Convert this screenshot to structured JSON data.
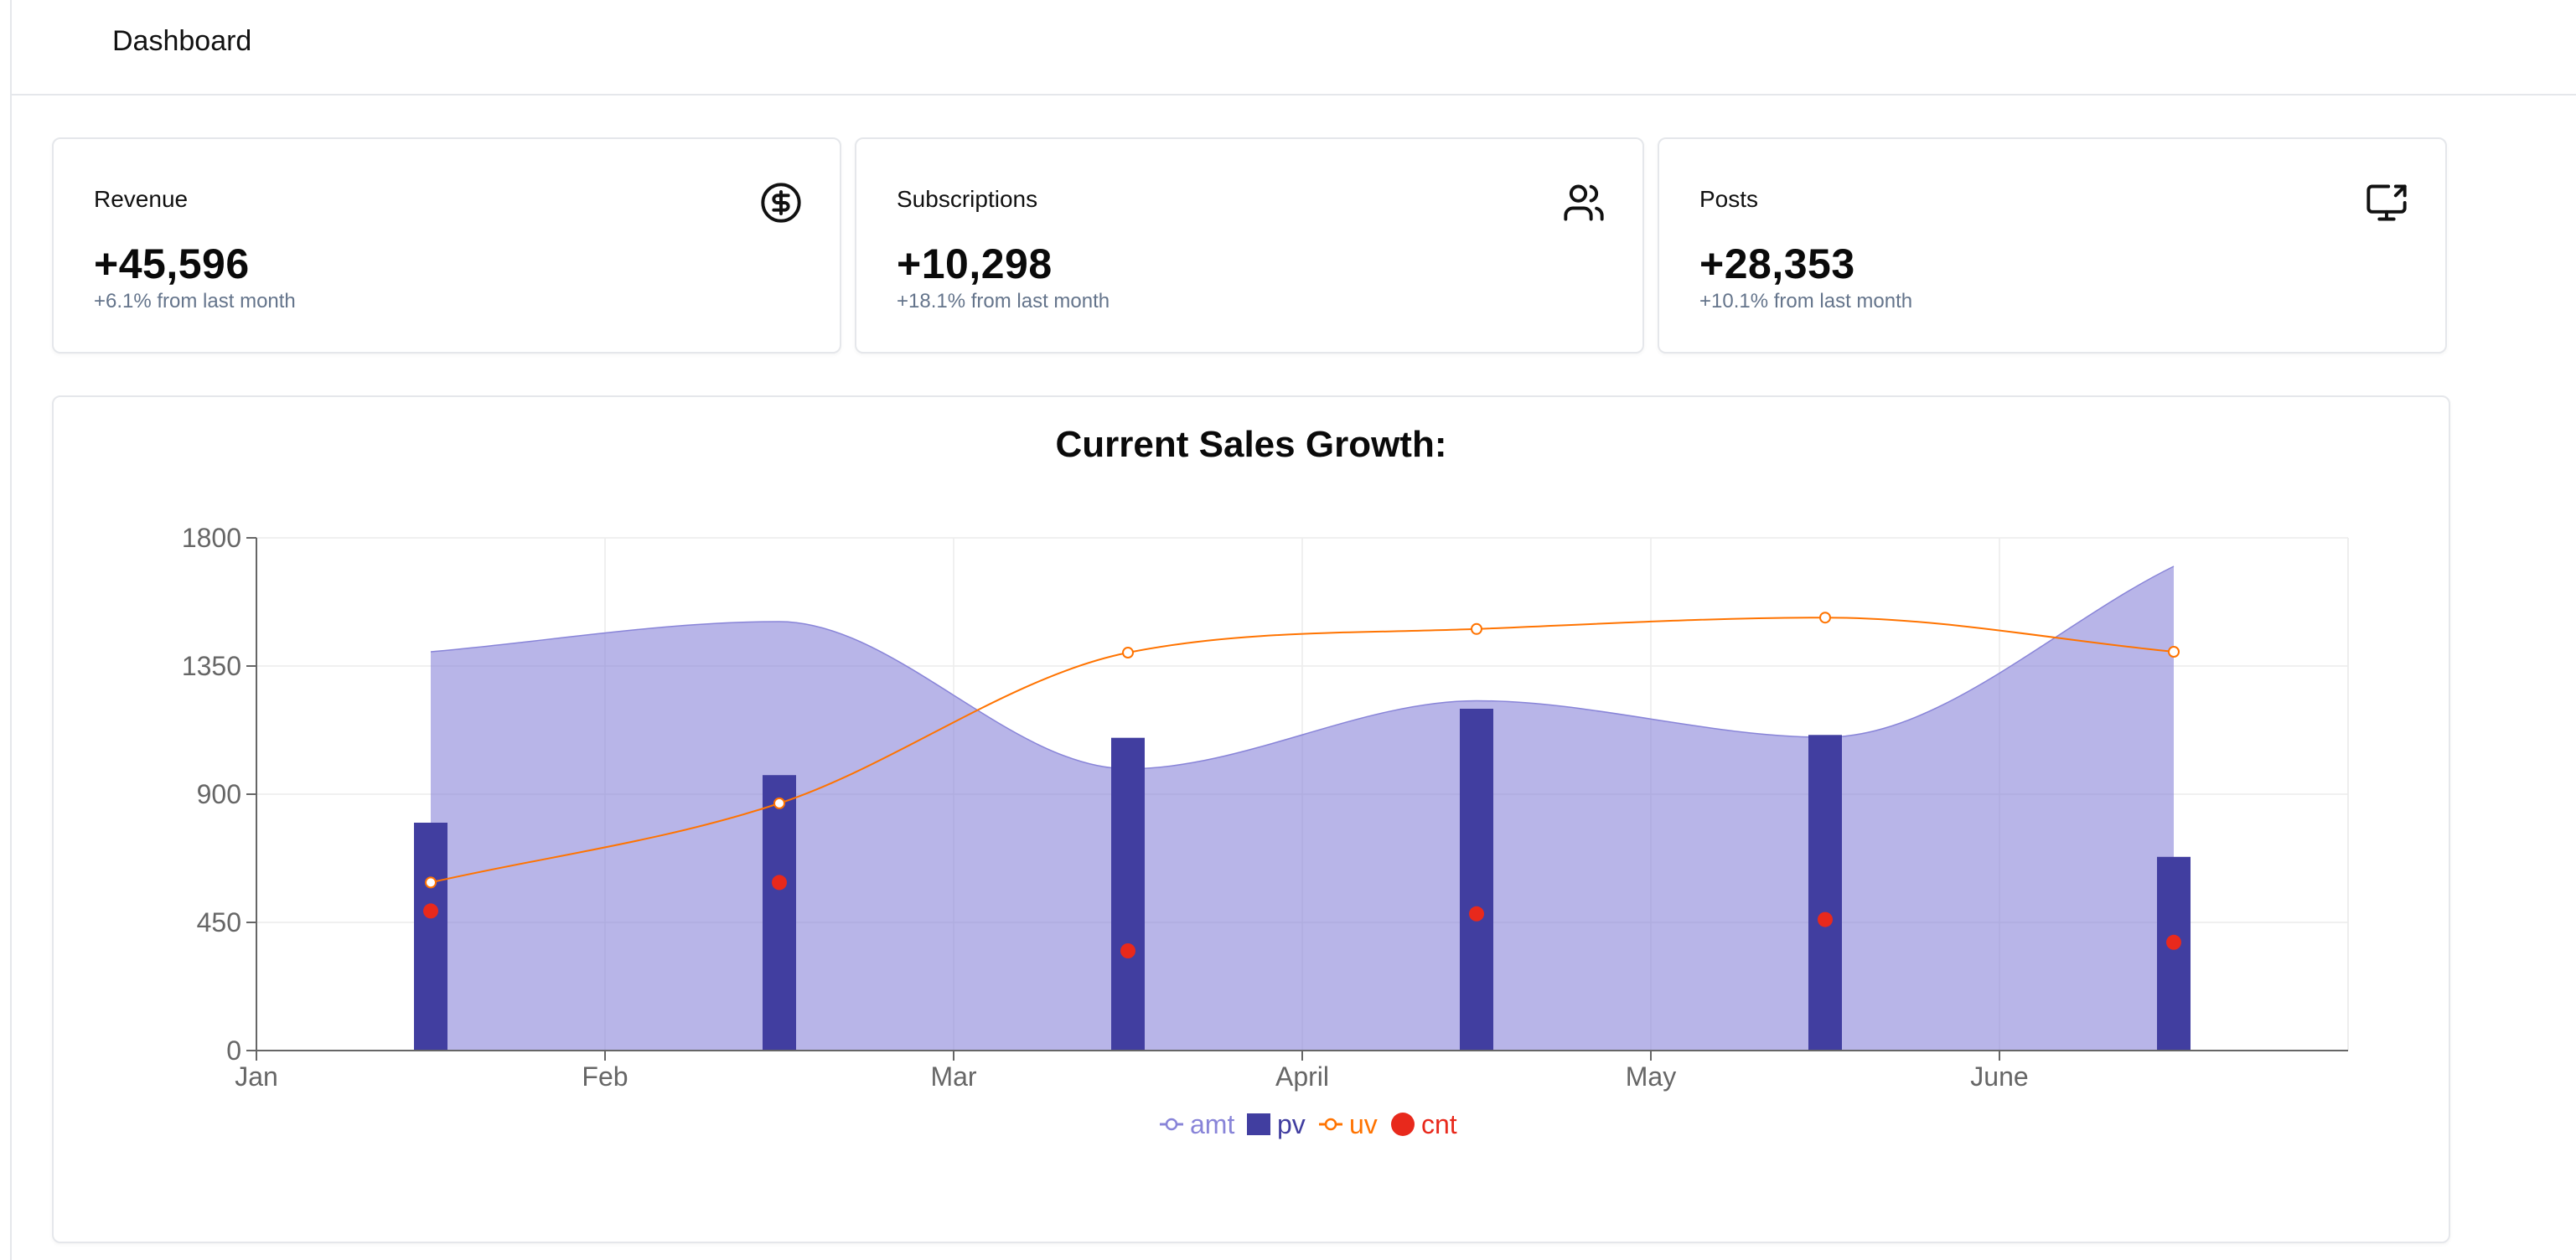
{
  "header": {
    "title": "Dashboard"
  },
  "stats": [
    {
      "label": "Revenue",
      "value": "+45,596",
      "change": "+6.1% from last month",
      "icon": "dollar-circle-icon"
    },
    {
      "label": "Subscriptions",
      "value": "+10,298",
      "change": "+18.1% from last month",
      "icon": "users-icon"
    },
    {
      "label": "Posts",
      "value": "+28,353",
      "change": "+10.1% from last month",
      "icon": "monitor-share-icon"
    }
  ],
  "chart": {
    "title": "Current Sales Growth:"
  },
  "chart_data": {
    "type": "composed",
    "title": "Current Sales Growth:",
    "categories": [
      "Jan",
      "Feb",
      "Mar",
      "April",
      "May",
      "June"
    ],
    "ylim": [
      0,
      1800
    ],
    "yticks": [
      0,
      450,
      900,
      1350,
      1800
    ],
    "series": [
      {
        "name": "amt",
        "kind": "area",
        "color": "#8884d8",
        "values": [
          1400,
          1506,
          989,
          1228,
          1100,
          1700
        ]
      },
      {
        "name": "pv",
        "kind": "bar",
        "color": "#413ea0",
        "values": [
          800,
          967,
          1098,
          1200,
          1108,
          680
        ]
      },
      {
        "name": "uv",
        "kind": "line",
        "color": "#ff7300",
        "values": [
          590,
          868,
          1397,
          1480,
          1520,
          1400
        ]
      },
      {
        "name": "cnt",
        "kind": "scatter",
        "color": "#e8291c",
        "values": [
          490,
          590,
          350,
          480,
          460,
          380
        ]
      }
    ],
    "legend": [
      "amt",
      "pv",
      "uv",
      "cnt"
    ]
  },
  "colors": {
    "border": "#e5e7eb",
    "muted": "#64748b"
  }
}
